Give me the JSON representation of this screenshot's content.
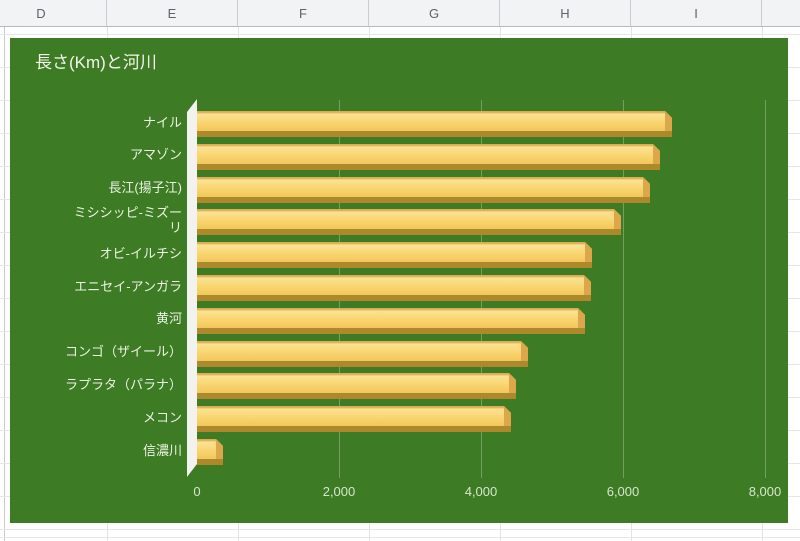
{
  "spreadsheet": {
    "column_headers": [
      "D",
      "E",
      "F",
      "G",
      "H",
      "I",
      ""
    ]
  },
  "chart": {
    "background_color": "#3d7b24",
    "bar_face_color": "#f9d671",
    "bar_shadow_color": "#ad892b",
    "bar_end_color": "#dca64b",
    "title_color": "#f2f6ec",
    "label_color": "#ecf2e4",
    "axis_label_color": "#d8e5ce"
  },
  "chart_data": {
    "type": "bar",
    "orientation": "horizontal",
    "title": "長さ(Km)と河川",
    "categories": [
      "ナイル",
      "アマゾン",
      "長江(揚子江)",
      "ミシシッピ-ミズーリ",
      "オビ-イルチシ",
      "エニセイ-アンガラ",
      "黄河",
      "コンゴ（ザイール）",
      "ラプラタ（パラナ）",
      "メコン",
      "信濃川"
    ],
    "values": [
      6695,
      6516,
      6380,
      5969,
      5568,
      5550,
      5464,
      4667,
      4500,
      4425,
      367
    ],
    "xlabel": "",
    "ylabel": "",
    "xlim": [
      0,
      8000
    ],
    "x_ticks": [
      0,
      2000,
      4000,
      6000,
      8000
    ],
    "x_tick_labels": [
      "0",
      "2,000",
      "4,000",
      "6,000",
      "8,000"
    ],
    "grid": true,
    "legend": false,
    "bar_style": "3d"
  }
}
